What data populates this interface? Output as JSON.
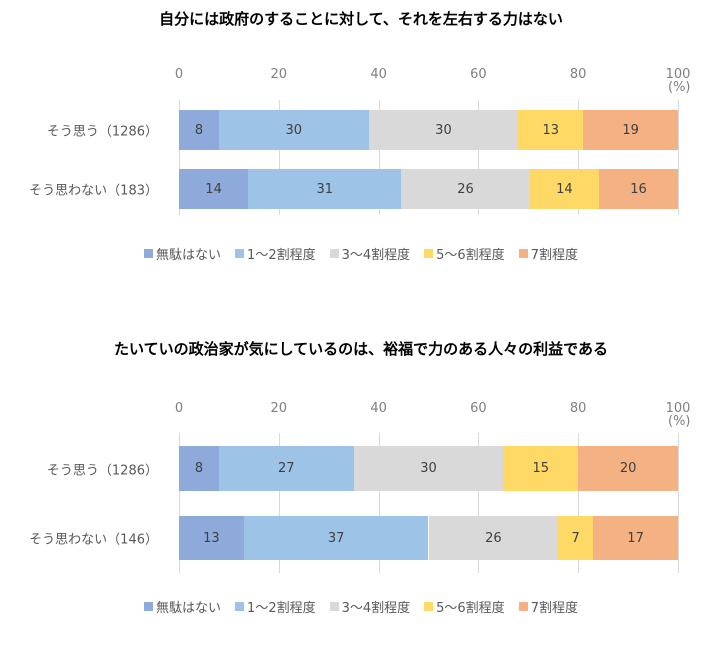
{
  "chart_data": [
    {
      "type": "bar",
      "orientation": "horizontal",
      "stacked": true,
      "title": "自分には政府のすることに対して、それを左右する力はない",
      "xlim": [
        0,
        100
      ],
      "xticks": [
        "0",
        "20",
        "40",
        "60",
        "80",
        "100"
      ],
      "unit": "(%)",
      "categories": [
        "そう思う（1286）",
        "そう思わない（183）"
      ],
      "series": [
        {
          "name": "無駄はない",
          "color": "#8eaadb",
          "values": [
            8,
            14
          ]
        },
        {
          "name": "1～2割程度",
          "color": "#9dc3e6",
          "values": [
            30,
            31
          ]
        },
        {
          "name": "3～4割程度",
          "color": "#d9d9d9",
          "values": [
            30,
            26
          ]
        },
        {
          "name": "5～6割程度",
          "color": "#ffd966",
          "values": [
            13,
            14
          ]
        },
        {
          "name": "7割程度",
          "color": "#f4b183",
          "values": [
            19,
            16
          ]
        }
      ],
      "legend": "bottom",
      "grid": true
    },
    {
      "type": "bar",
      "orientation": "horizontal",
      "stacked": true,
      "title": "たいていの政治家が気にしているのは、裕福で力のある人々の利益である",
      "xlim": [
        0,
        100
      ],
      "xticks": [
        "0",
        "20",
        "40",
        "60",
        "80",
        "100"
      ],
      "unit": "(%)",
      "categories": [
        "そう思う（1286）",
        "そう思わない（146）"
      ],
      "series": [
        {
          "name": "無駄はない",
          "color": "#8eaadb",
          "values": [
            8,
            13
          ]
        },
        {
          "name": "1～2割程度",
          "color": "#9dc3e6",
          "values": [
            27,
            37
          ]
        },
        {
          "name": "3～4割程度",
          "color": "#d9d9d9",
          "values": [
            30,
            26
          ]
        },
        {
          "name": "5～6割程度",
          "color": "#ffd966",
          "values": [
            15,
            7
          ]
        },
        {
          "name": "7割程度",
          "color": "#f4b183",
          "values": [
            20,
            17
          ]
        }
      ],
      "legend": "bottom",
      "grid": true
    }
  ]
}
